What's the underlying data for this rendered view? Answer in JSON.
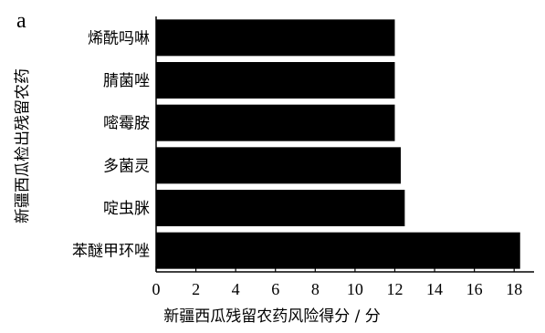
{
  "panel_label": "a",
  "chart_data": {
    "type": "bar",
    "orientation": "horizontal",
    "categories": [
      "烯酰吗啉",
      "腈菌唑",
      "嘧霉胺",
      "多菌灵",
      "啶虫脒",
      "苯醚甲环唑"
    ],
    "values": [
      12.0,
      12.0,
      12.0,
      12.3,
      12.5,
      18.3
    ],
    "bar_color": "#000000",
    "xlabel": "新疆西瓜残留农药风险得分 / 分",
    "ylabel": "新疆西瓜检出残留农药",
    "xlim": [
      0,
      19
    ],
    "xticks": [
      0,
      2,
      4,
      6,
      8,
      10,
      12,
      14,
      16,
      18
    ],
    "grid": false
  }
}
